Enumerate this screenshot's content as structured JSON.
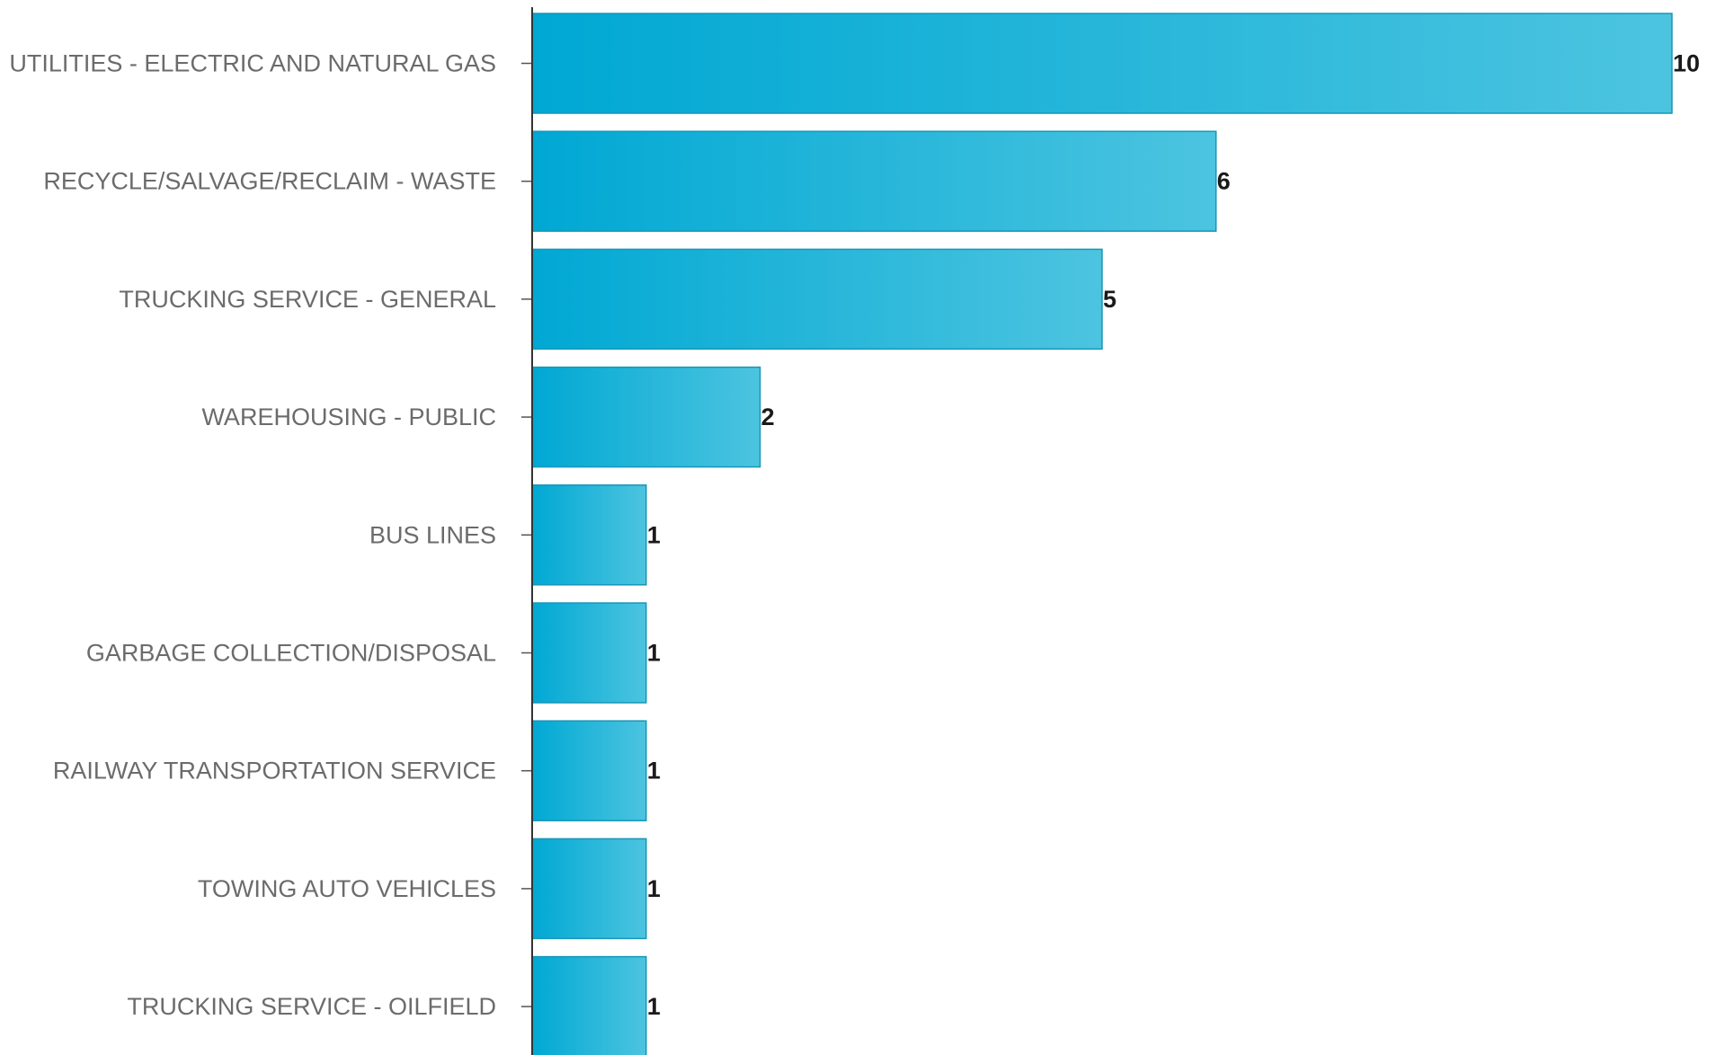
{
  "chart_data": {
    "type": "bar",
    "orientation": "horizontal",
    "categories": [
      "UTILITIES - ELECTRIC AND NATURAL GAS",
      "RECYCLE/SALVAGE/RECLAIM - WASTE",
      "TRUCKING SERVICE - GENERAL",
      "WAREHOUSING - PUBLIC",
      "BUS LINES",
      "GARBAGE COLLECTION/DISPOSAL",
      "RAILWAY TRANSPORTATION SERVICE",
      "TOWING AUTO VEHICLES",
      "TRUCKING SERVICE - OILFIELD"
    ],
    "values": [
      10,
      6,
      5,
      2,
      1,
      1,
      1,
      1,
      1
    ],
    "value_labels": [
      "10",
      "6",
      "5",
      "2",
      "1",
      "1",
      "1",
      "1",
      "1"
    ],
    "title": "",
    "xlabel": "",
    "ylabel": "",
    "xlim": [
      0,
      10
    ],
    "grid": false,
    "legend": "none",
    "colors": {
      "bar_start": "#00a8d3",
      "bar_end": "#4cc4e0",
      "bar_stroke": "#1796b8",
      "category_text": "#6b6b6b",
      "value_text": "#1a1a1a",
      "axis": "#333333"
    }
  }
}
